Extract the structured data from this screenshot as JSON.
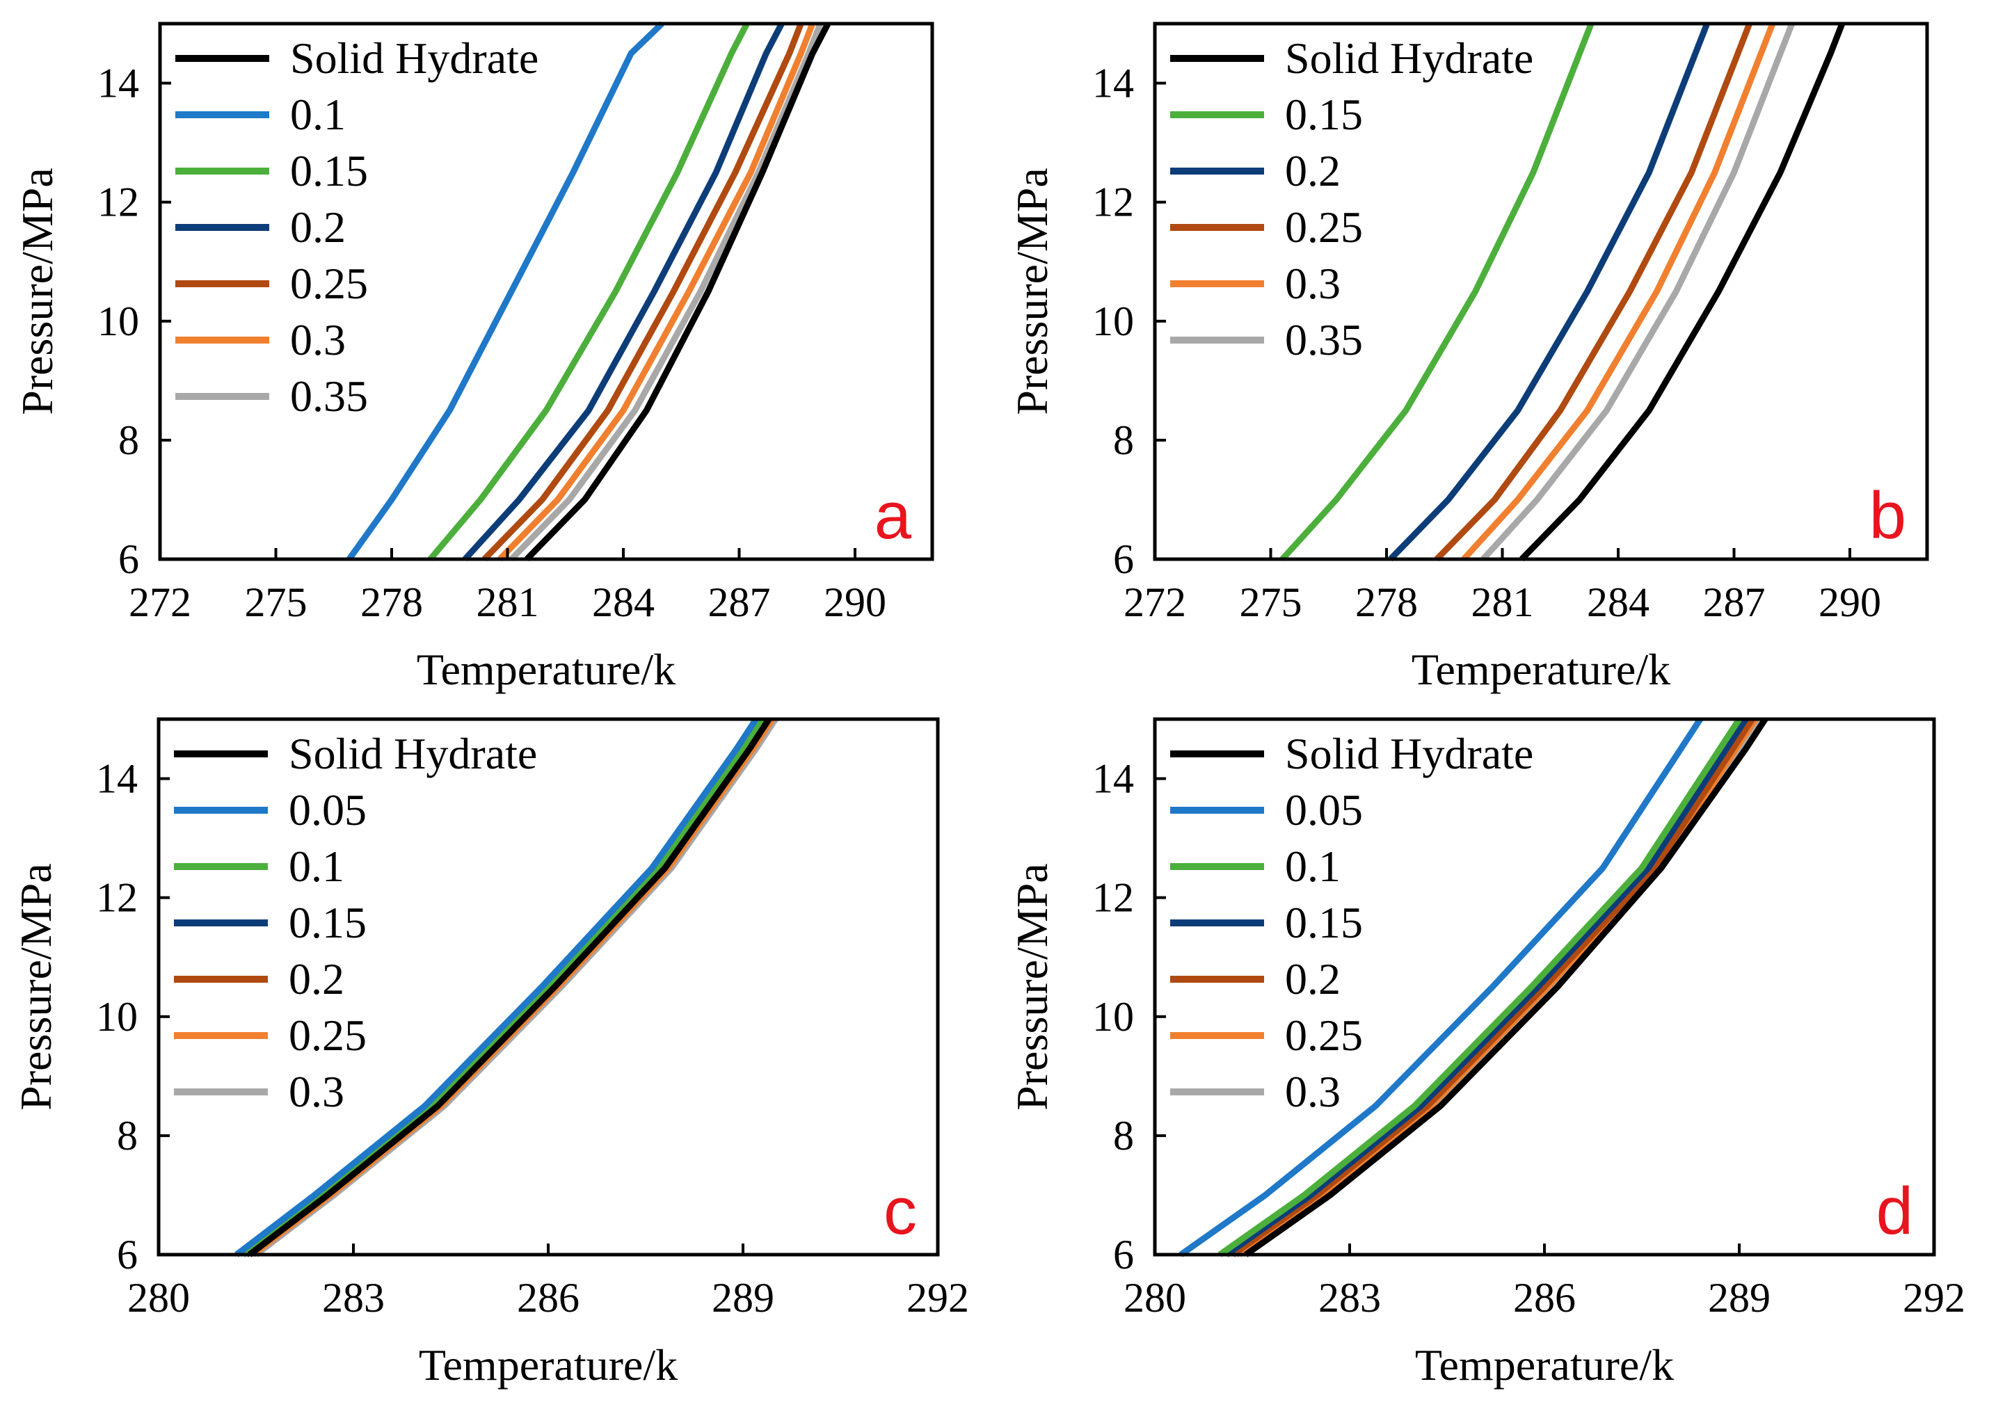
{
  "chart_data": [
    {
      "type": "line",
      "panel_label": "a",
      "xlabel": "Temperature/k",
      "ylabel": "Pressure/MPa",
      "xlim": [
        272,
        292
      ],
      "ylim": [
        6,
        15
      ],
      "xticks": [
        "272",
        "275",
        "278",
        "281",
        "284",
        "287",
        "290"
      ],
      "yticks": [
        "6",
        "8",
        "10",
        "12",
        "14"
      ],
      "legend_position": "top-left",
      "series": [
        {
          "name": "Solid Hydrate",
          "color": "#000000",
          "x": [
            281.5,
            283.0,
            284.6,
            286.2,
            287.6,
            288.9,
            289.3
          ],
          "y": [
            6,
            7,
            8.5,
            10.5,
            12.5,
            14.5,
            15
          ]
        },
        {
          "name": "0.1",
          "color": "#1f78c8",
          "x": [
            276.9,
            278.0,
            279.5,
            281.1,
            282.7,
            284.2,
            285.0
          ],
          "y": [
            6,
            7,
            8.5,
            10.5,
            12.5,
            14.5,
            15
          ]
        },
        {
          "name": "0.15",
          "color": "#4caf3c",
          "x": [
            279.0,
            280.3,
            282.0,
            283.8,
            285.4,
            286.8,
            287.2
          ],
          "y": [
            6,
            7,
            8.5,
            10.5,
            12.5,
            14.5,
            15
          ]
        },
        {
          "name": "0.2",
          "color": "#0d3d78",
          "x": [
            279.9,
            281.3,
            283.1,
            284.8,
            286.4,
            287.7,
            288.1
          ],
          "y": [
            6,
            7,
            8.5,
            10.5,
            12.5,
            14.5,
            15
          ]
        },
        {
          "name": "0.25",
          "color": "#b04a10",
          "x": [
            280.4,
            281.9,
            283.6,
            285.3,
            286.9,
            288.3,
            288.6
          ],
          "y": [
            6,
            7,
            8.5,
            10.5,
            12.5,
            14.5,
            15
          ]
        },
        {
          "name": "0.3",
          "color": "#f08030",
          "x": [
            280.8,
            282.3,
            284.0,
            285.7,
            287.3,
            288.6,
            288.9
          ],
          "y": [
            6,
            7,
            8.5,
            10.5,
            12.5,
            14.5,
            15
          ]
        },
        {
          "name": "0.35",
          "color": "#a8a8a8",
          "x": [
            281.1,
            282.6,
            284.3,
            286.0,
            287.5,
            288.8,
            289.1
          ],
          "y": [
            6,
            7,
            8.5,
            10.5,
            12.5,
            14.5,
            15
          ]
        }
      ]
    },
    {
      "type": "line",
      "panel_label": "b",
      "xlabel": "Temperature/k",
      "ylabel": "Pressure/MPa",
      "xlim": [
        272,
        292
      ],
      "ylim": [
        6,
        15
      ],
      "xticks": [
        "272",
        "275",
        "278",
        "281",
        "284",
        "287",
        "290"
      ],
      "yticks": [
        "6",
        "8",
        "10",
        "12",
        "14"
      ],
      "legend_position": "top-left",
      "series": [
        {
          "name": "Solid Hydrate",
          "color": "#000000",
          "x": [
            281.5,
            283.0,
            284.8,
            286.6,
            288.2,
            289.5,
            289.8
          ],
          "y": [
            6,
            7,
            8.5,
            10.5,
            12.5,
            14.5,
            15
          ]
        },
        {
          "name": "0.15",
          "color": "#4caf3c",
          "x": [
            275.3,
            276.7,
            278.5,
            280.3,
            281.8,
            283.0,
            283.3
          ],
          "y": [
            6,
            7,
            8.5,
            10.5,
            12.5,
            14.5,
            15
          ]
        },
        {
          "name": "0.2",
          "color": "#0d3d78",
          "x": [
            278.1,
            279.6,
            281.4,
            283.2,
            284.8,
            286.0,
            286.3
          ],
          "y": [
            6,
            7,
            8.5,
            10.5,
            12.5,
            14.5,
            15
          ]
        },
        {
          "name": "0.25",
          "color": "#b04a10",
          "x": [
            279.3,
            280.8,
            282.5,
            284.3,
            285.9,
            287.1,
            287.4
          ],
          "y": [
            6,
            7,
            8.5,
            10.5,
            12.5,
            14.5,
            15
          ]
        },
        {
          "name": "0.3",
          "color": "#f08030",
          "x": [
            280.0,
            281.4,
            283.2,
            285.0,
            286.5,
            287.7,
            288.0
          ],
          "y": [
            6,
            7,
            8.5,
            10.5,
            12.5,
            14.5,
            15
          ]
        },
        {
          "name": "0.35",
          "color": "#a8a8a8",
          "x": [
            280.5,
            281.9,
            283.7,
            285.5,
            287.0,
            288.2,
            288.5
          ],
          "y": [
            6,
            7,
            8.5,
            10.5,
            12.5,
            14.5,
            15
          ]
        }
      ]
    },
    {
      "type": "line",
      "panel_label": "c",
      "xlabel": "Temperature/k",
      "ylabel": "Pressure/MPa",
      "xlim": [
        280,
        292
      ],
      "ylim": [
        6,
        15
      ],
      "xticks": [
        "280",
        "283",
        "286",
        "289",
        "292"
      ],
      "yticks": [
        "6",
        "8",
        "10",
        "12",
        "14"
      ],
      "legend_position": "top-left",
      "series": [
        {
          "name": "Solid Hydrate",
          "color": "#000000",
          "x": [
            281.4,
            282.6,
            284.3,
            286.1,
            287.8,
            289.1,
            289.4
          ],
          "y": [
            6,
            7,
            8.5,
            10.5,
            12.5,
            14.5,
            15
          ]
        },
        {
          "name": "0.05",
          "color": "#1f78c8",
          "x": [
            281.2,
            282.4,
            284.1,
            285.9,
            287.6,
            288.9,
            289.2
          ],
          "y": [
            6,
            7,
            8.5,
            10.5,
            12.5,
            14.5,
            15
          ]
        },
        {
          "name": "0.1",
          "color": "#4caf3c",
          "x": [
            281.3,
            282.5,
            284.2,
            286.0,
            287.7,
            289.0,
            289.3
          ],
          "y": [
            6,
            7,
            8.5,
            10.5,
            12.5,
            14.5,
            15
          ]
        },
        {
          "name": "0.15",
          "color": "#0d3d78",
          "x": [
            281.35,
            282.55,
            284.25,
            286.05,
            287.75,
            289.05,
            289.35
          ],
          "y": [
            6,
            7,
            8.5,
            10.5,
            12.5,
            14.5,
            15
          ]
        },
        {
          "name": "0.2",
          "color": "#b04a10",
          "x": [
            281.4,
            282.6,
            284.3,
            286.1,
            287.8,
            289.1,
            289.4
          ],
          "y": [
            6,
            7,
            8.5,
            10.5,
            12.5,
            14.5,
            15
          ]
        },
        {
          "name": "0.25",
          "color": "#f08030",
          "x": [
            281.45,
            282.65,
            284.35,
            286.15,
            287.85,
            289.15,
            289.45
          ],
          "y": [
            6,
            7,
            8.5,
            10.5,
            12.5,
            14.5,
            15
          ]
        },
        {
          "name": "0.3",
          "color": "#a8a8a8",
          "x": [
            281.5,
            282.7,
            284.4,
            286.2,
            287.9,
            289.2,
            289.5
          ],
          "y": [
            6,
            7,
            8.5,
            10.5,
            12.5,
            14.5,
            15
          ]
        }
      ]
    },
    {
      "type": "line",
      "panel_label": "d",
      "xlabel": "Temperature/k",
      "ylabel": "Pressure/MPa",
      "xlim": [
        280,
        292
      ],
      "ylim": [
        6,
        15
      ],
      "xticks": [
        "280",
        "283",
        "286",
        "289",
        "292"
      ],
      "yticks": [
        "6",
        "8",
        "10",
        "12",
        "14"
      ],
      "legend_position": "top-left",
      "series": [
        {
          "name": "Solid Hydrate",
          "color": "#000000",
          "x": [
            281.4,
            282.7,
            284.4,
            286.2,
            287.8,
            289.1,
            289.4
          ],
          "y": [
            6,
            7,
            8.5,
            10.5,
            12.5,
            14.5,
            15
          ]
        },
        {
          "name": "0.05",
          "color": "#1f78c8",
          "x": [
            280.4,
            281.7,
            283.4,
            285.2,
            286.9,
            288.1,
            288.4
          ],
          "y": [
            6,
            7,
            8.5,
            10.5,
            12.5,
            14.5,
            15
          ]
        },
        {
          "name": "0.1",
          "color": "#4caf3c",
          "x": [
            281.0,
            282.3,
            284.0,
            285.8,
            287.5,
            288.7,
            289.0
          ],
          "y": [
            6,
            7,
            8.5,
            10.5,
            12.5,
            14.5,
            15
          ]
        },
        {
          "name": "0.15",
          "color": "#0d3d78",
          "x": [
            281.1,
            282.4,
            284.1,
            285.9,
            287.6,
            288.8,
            289.1
          ],
          "y": [
            6,
            7,
            8.5,
            10.5,
            12.5,
            14.5,
            15
          ]
        },
        {
          "name": "0.2",
          "color": "#b04a10",
          "x": [
            281.2,
            282.5,
            284.2,
            286.0,
            287.7,
            288.9,
            289.2
          ],
          "y": [
            6,
            7,
            8.5,
            10.5,
            12.5,
            14.5,
            15
          ]
        },
        {
          "name": "0.25",
          "color": "#f08030",
          "x": [
            281.25,
            282.55,
            284.25,
            286.05,
            287.75,
            288.95,
            289.25
          ],
          "y": [
            6,
            7,
            8.5,
            10.5,
            12.5,
            14.5,
            15
          ]
        },
        {
          "name": "0.3",
          "color": "#a8a8a8",
          "x": [
            281.3,
            282.6,
            284.3,
            286.1,
            287.8,
            289.0,
            289.3
          ],
          "y": [
            6,
            7,
            8.5,
            10.5,
            12.5,
            14.5,
            15
          ]
        }
      ]
    }
  ],
  "panel_letter_color": "#e8141e"
}
